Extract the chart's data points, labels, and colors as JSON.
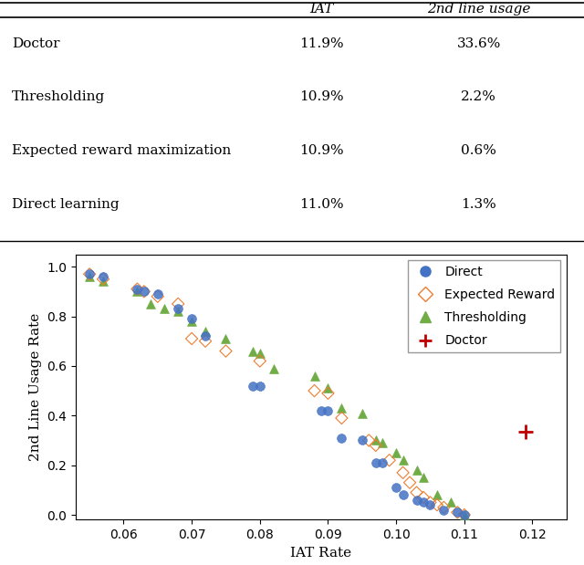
{
  "table": {
    "rows": [
      "Doctor",
      "Thresholding",
      "Expected reward maximization",
      "Direct learning"
    ],
    "col1_header": "IAT",
    "col2_header": "2nd line usage",
    "col1_values": [
      "11.9%",
      "10.9%",
      "10.9%",
      "11.0%"
    ],
    "col2_values": [
      "33.6%",
      "2.2%",
      "0.6%",
      "1.3%"
    ]
  },
  "direct_x": [
    0.055,
    0.057,
    0.062,
    0.063,
    0.065,
    0.068,
    0.07,
    0.072,
    0.079,
    0.08,
    0.089,
    0.09,
    0.092,
    0.095,
    0.097,
    0.098,
    0.1,
    0.101,
    0.103,
    0.104,
    0.105,
    0.107,
    0.109,
    0.11
  ],
  "direct_y": [
    0.97,
    0.96,
    0.91,
    0.9,
    0.89,
    0.83,
    0.79,
    0.72,
    0.52,
    0.52,
    0.42,
    0.42,
    0.31,
    0.3,
    0.21,
    0.21,
    0.11,
    0.08,
    0.06,
    0.05,
    0.04,
    0.02,
    0.01,
    0.0
  ],
  "expected_reward_x": [
    0.055,
    0.057,
    0.062,
    0.063,
    0.065,
    0.068,
    0.07,
    0.072,
    0.075,
    0.08,
    0.088,
    0.09,
    0.092,
    0.096,
    0.097,
    0.099,
    0.101,
    0.102,
    0.103,
    0.104,
    0.105,
    0.106,
    0.107,
    0.109,
    0.11
  ],
  "expected_reward_y": [
    0.97,
    0.95,
    0.91,
    0.9,
    0.88,
    0.85,
    0.71,
    0.7,
    0.66,
    0.62,
    0.5,
    0.49,
    0.39,
    0.3,
    0.28,
    0.22,
    0.17,
    0.13,
    0.09,
    0.07,
    0.05,
    0.04,
    0.03,
    0.01,
    0.0
  ],
  "thresholding_x": [
    0.055,
    0.057,
    0.062,
    0.064,
    0.066,
    0.068,
    0.07,
    0.072,
    0.075,
    0.079,
    0.08,
    0.082,
    0.088,
    0.09,
    0.092,
    0.095,
    0.097,
    0.098,
    0.1,
    0.101,
    0.103,
    0.104,
    0.106,
    0.108,
    0.11
  ],
  "thresholding_y": [
    0.96,
    0.94,
    0.9,
    0.85,
    0.83,
    0.82,
    0.78,
    0.74,
    0.71,
    0.66,
    0.65,
    0.59,
    0.56,
    0.51,
    0.43,
    0.41,
    0.3,
    0.29,
    0.25,
    0.22,
    0.18,
    0.15,
    0.08,
    0.05,
    0.0
  ],
  "doctor_x": [
    0.119
  ],
  "doctor_y": [
    0.336
  ],
  "xlabel": "IAT Rate",
  "ylabel": "2nd Line Usage Rate",
  "xlim": [
    0.053,
    0.125
  ],
  "ylim": [
    -0.02,
    1.05
  ],
  "xticks": [
    0.06,
    0.07,
    0.08,
    0.09,
    0.1,
    0.11,
    0.12
  ],
  "yticks": [
    0.0,
    0.2,
    0.4,
    0.6,
    0.8,
    1.0
  ],
  "direct_color": "#4472c4",
  "expected_reward_color": "#ed7d31",
  "thresholding_color": "#70ad47",
  "doctor_color": "#c00000",
  "legend_labels": [
    "Direct",
    "Expected Reward",
    "Thresholding",
    "Doctor"
  ],
  "figsize": [
    6.4,
    6.19
  ],
  "dpi": 100
}
